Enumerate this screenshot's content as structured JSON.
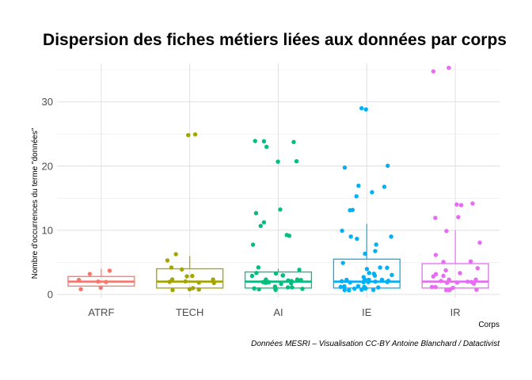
{
  "chart_data": {
    "type": "boxplot",
    "title": "Dispersion des fiches métiers liées aux données par corps",
    "xlabel": "Corps",
    "ylabel": "Nombre d'occurrences du terme \"données\"",
    "caption": "Données MESRI – Visualisation CC-BY Antoine Blanchard / Datactivist",
    "categories": [
      "ATRF",
      "TECH",
      "AI",
      "IE",
      "IR"
    ],
    "ylim": [
      -0.5,
      36
    ],
    "yticks": [
      0,
      10,
      20,
      30
    ],
    "grid": true,
    "colors": [
      "#F8766D",
      "#A3A500",
      "#00BF7D",
      "#00B0F6",
      "#E76BF3"
    ],
    "boxes": [
      {
        "name": "ATRF",
        "min": 1,
        "q1": 1.3,
        "median": 2,
        "q3": 2.8,
        "max": 4
      },
      {
        "name": "TECH",
        "min": 1,
        "q1": 1,
        "median": 2,
        "q3": 4,
        "max": 6
      },
      {
        "name": "AI",
        "min": 1,
        "q1": 1,
        "median": 2,
        "q3": 3.5,
        "max": 4
      },
      {
        "name": "IE",
        "min": 1,
        "q1": 1,
        "median": 2,
        "q3": 5.5,
        "max": 11
      },
      {
        "name": "IR",
        "min": 1,
        "q1": 1,
        "median": 2,
        "q3": 4.8,
        "max": 10
      }
    ],
    "points": [
      {
        "name": "ATRF",
        "values": [
          1,
          1,
          2,
          2,
          2,
          3,
          4
        ]
      },
      {
        "name": "TECH",
        "values": [
          1,
          1,
          1,
          1,
          2,
          2,
          2,
          2,
          2,
          2,
          3,
          3,
          4,
          4,
          5,
          6,
          25,
          25
        ]
      },
      {
        "name": "AI",
        "values": [
          1,
          1,
          1,
          1,
          1,
          1,
          1,
          1,
          1,
          2,
          2,
          2,
          2,
          2,
          2,
          2,
          2,
          2,
          2,
          2,
          3,
          3,
          3,
          3,
          3,
          4,
          4,
          8,
          9,
          9,
          11,
          11,
          13,
          13,
          21,
          21,
          23,
          24,
          24,
          24
        ]
      },
      {
        "name": "IE",
        "values": [
          1,
          1,
          1,
          1,
          1,
          1,
          1,
          1,
          1,
          1,
          1,
          2,
          2,
          2,
          2,
          2,
          2,
          2,
          2,
          2,
          2,
          2,
          2,
          3,
          3,
          3,
          3,
          3,
          4,
          4,
          4,
          5,
          6,
          7,
          8,
          9,
          9,
          9,
          10,
          13,
          13,
          15,
          16,
          17,
          17,
          20,
          20,
          29,
          29
        ]
      },
      {
        "name": "IR",
        "values": [
          1,
          1,
          1,
          1,
          1,
          1,
          1,
          2,
          2,
          2,
          2,
          2,
          2,
          2,
          2,
          3,
          3,
          3,
          3,
          4,
          4,
          5,
          5,
          6,
          8,
          10,
          12,
          12,
          14,
          14,
          14,
          35,
          35
        ]
      }
    ]
  }
}
